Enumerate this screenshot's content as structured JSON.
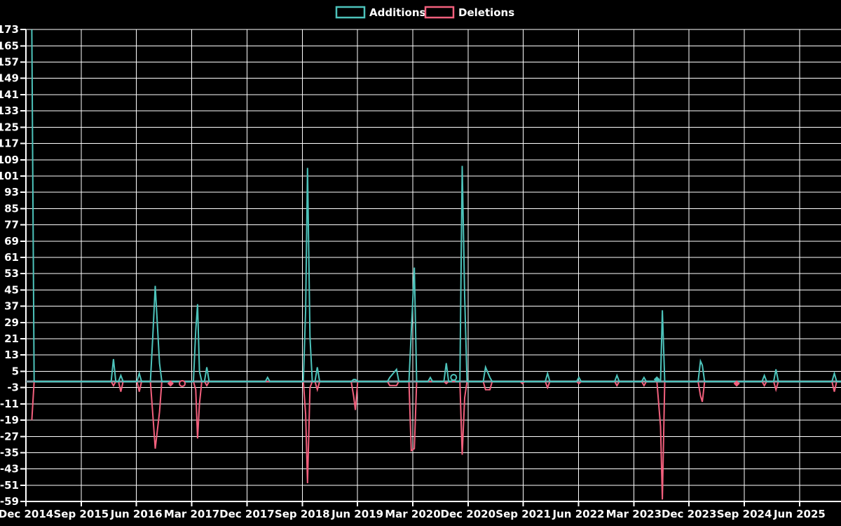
{
  "page": {
    "background": "#000000"
  },
  "legend": {
    "items": [
      {
        "label": "Additions",
        "color": "#4dc3bb"
      },
      {
        "label": "Deletions",
        "color": "#f2607d"
      }
    ]
  },
  "chart_data": {
    "type": "line",
    "title": "",
    "xlabel": "",
    "ylabel": "",
    "grid": true,
    "grid_color": "#ffffff",
    "zero_line_color": "#7fa0a8",
    "y_axis": {
      "min": -59,
      "max": 173,
      "step": 8
    },
    "x_tick_labels": [
      "Dec 2014",
      "Sep 2015",
      "Jun 2016",
      "Mar 2017",
      "Dec 2017",
      "Sep 2018",
      "Jun 2019",
      "Mar 2020",
      "Dec 2020",
      "Sep 2021",
      "Jun 2022",
      "Mar 2023",
      "Dec 2023",
      "Sep 2024",
      "Jun 2025"
    ],
    "x_tick_interval_months": 9,
    "series": [
      {
        "name": "Additions",
        "key": "a",
        "color": "#4dc3bb"
      },
      {
        "name": "Deletions",
        "key": "d",
        "color": "#f2607d"
      }
    ],
    "points": [
      {
        "date": "2014-12",
        "m": 0.5,
        "a": 173,
        "d": -19
      },
      {
        "date": "2016-02",
        "m": 13.8,
        "a": 11,
        "d": -2
      },
      {
        "date": "2016-03",
        "m": 15.0,
        "a": 3,
        "d": -5
      },
      {
        "date": "2016-06",
        "m": 18.0,
        "a": 4,
        "d": -5
      },
      {
        "date": "2016-08",
        "m": 20.2,
        "a": 22,
        "d": -16
      },
      {
        "date": "2016-08",
        "m": 20.6,
        "a": 47,
        "d": -33
      },
      {
        "date": "2016-09",
        "m": 21.3,
        "a": 9,
        "d": -15
      },
      {
        "date": "2016-11",
        "m": 23.1,
        "a": 0,
        "d": -1,
        "marker": "diamond",
        "marker_series": "d"
      },
      {
        "date": "2017-01",
        "m": 25.0,
        "a": 0,
        "d": -1,
        "marker": "ring",
        "marker_series": "d"
      },
      {
        "date": "2017-03",
        "m": 27.2,
        "a": 25,
        "d": -4
      },
      {
        "date": "2017-03",
        "m": 27.5,
        "a": 38,
        "d": -28
      },
      {
        "date": "2017-04",
        "m": 27.8,
        "a": 5,
        "d": -11
      },
      {
        "date": "2017-05",
        "m": 29.0,
        "a": 7,
        "d": -2
      },
      {
        "date": "2018-02",
        "m": 38.9,
        "a": 2,
        "d": 0
      },
      {
        "date": "2018-09",
        "m": 45.1,
        "a": 35,
        "d": -16
      },
      {
        "date": "2018-09",
        "m": 45.4,
        "a": 105,
        "d": -50
      },
      {
        "date": "2018-10",
        "m": 45.8,
        "a": 22,
        "d": -3
      },
      {
        "date": "2018-11",
        "m": 47.0,
        "a": 7,
        "d": -4
      },
      {
        "date": "2019-05",
        "m": 52.9,
        "a": 1,
        "d": -7
      },
      {
        "date": "2019-05",
        "m": 53.2,
        "a": 1,
        "d": -14
      },
      {
        "date": "2019-10",
        "m": 58.8,
        "a": 2,
        "d": -2
      },
      {
        "date": "2019-11",
        "m": 59.9,
        "a": 6,
        "d": -2
      },
      {
        "date": "2020-02",
        "m": 62.3,
        "a": 24,
        "d": -34
      },
      {
        "date": "2020-03",
        "m": 62.8,
        "a": 56,
        "d": -33
      },
      {
        "date": "2020-05",
        "m": 65.4,
        "a": 2,
        "d": 0
      },
      {
        "date": "2020-08",
        "m": 68.0,
        "a": 9,
        "d": -1
      },
      {
        "date": "2020-09",
        "m": 69.2,
        "a": 2,
        "d": 0,
        "marker": "ring",
        "marker_series": "a"
      },
      {
        "date": "2020-10",
        "m": 70.6,
        "a": 106,
        "d": -36
      },
      {
        "date": "2020-11",
        "m": 71.0,
        "a": 42,
        "d": -8
      },
      {
        "date": "2021-02",
        "m": 74.4,
        "a": 7,
        "d": -4
      },
      {
        "date": "2021-03",
        "m": 75.1,
        "a": 2,
        "d": -4
      },
      {
        "date": "2021-08",
        "m": 80.4,
        "a": 0,
        "d": -1
      },
      {
        "date": "2021-12",
        "m": 84.5,
        "a": 4,
        "d": -3
      },
      {
        "date": "2022-05",
        "m": 89.6,
        "a": 2,
        "d": -1
      },
      {
        "date": "2022-11",
        "m": 95.8,
        "a": 3,
        "d": -2
      },
      {
        "date": "2023-04",
        "m": 100.2,
        "a": 2,
        "d": -2
      },
      {
        "date": "2023-06",
        "m": 102.3,
        "a": 1,
        "d": 0,
        "marker": "diamond",
        "marker_series": "a"
      },
      {
        "date": "2023-06",
        "m": 102.9,
        "a": 0,
        "d": -22
      },
      {
        "date": "2023-07",
        "m": 103.2,
        "a": 35,
        "d": -58
      },
      {
        "date": "2024-01",
        "m": 109.4,
        "a": 10,
        "d": -7
      },
      {
        "date": "2024-01",
        "m": 109.7,
        "a": 8,
        "d": -10
      },
      {
        "date": "2024-07",
        "m": 115.3,
        "a": 0,
        "d": -1,
        "marker": "diamond",
        "marker_series": "d"
      },
      {
        "date": "2024-11",
        "m": 119.8,
        "a": 3,
        "d": -2
      },
      {
        "date": "2025-01",
        "m": 121.7,
        "a": 6,
        "d": -4
      },
      {
        "date": "2025-11",
        "m": 131.2,
        "a": 4,
        "d": -5
      }
    ]
  }
}
